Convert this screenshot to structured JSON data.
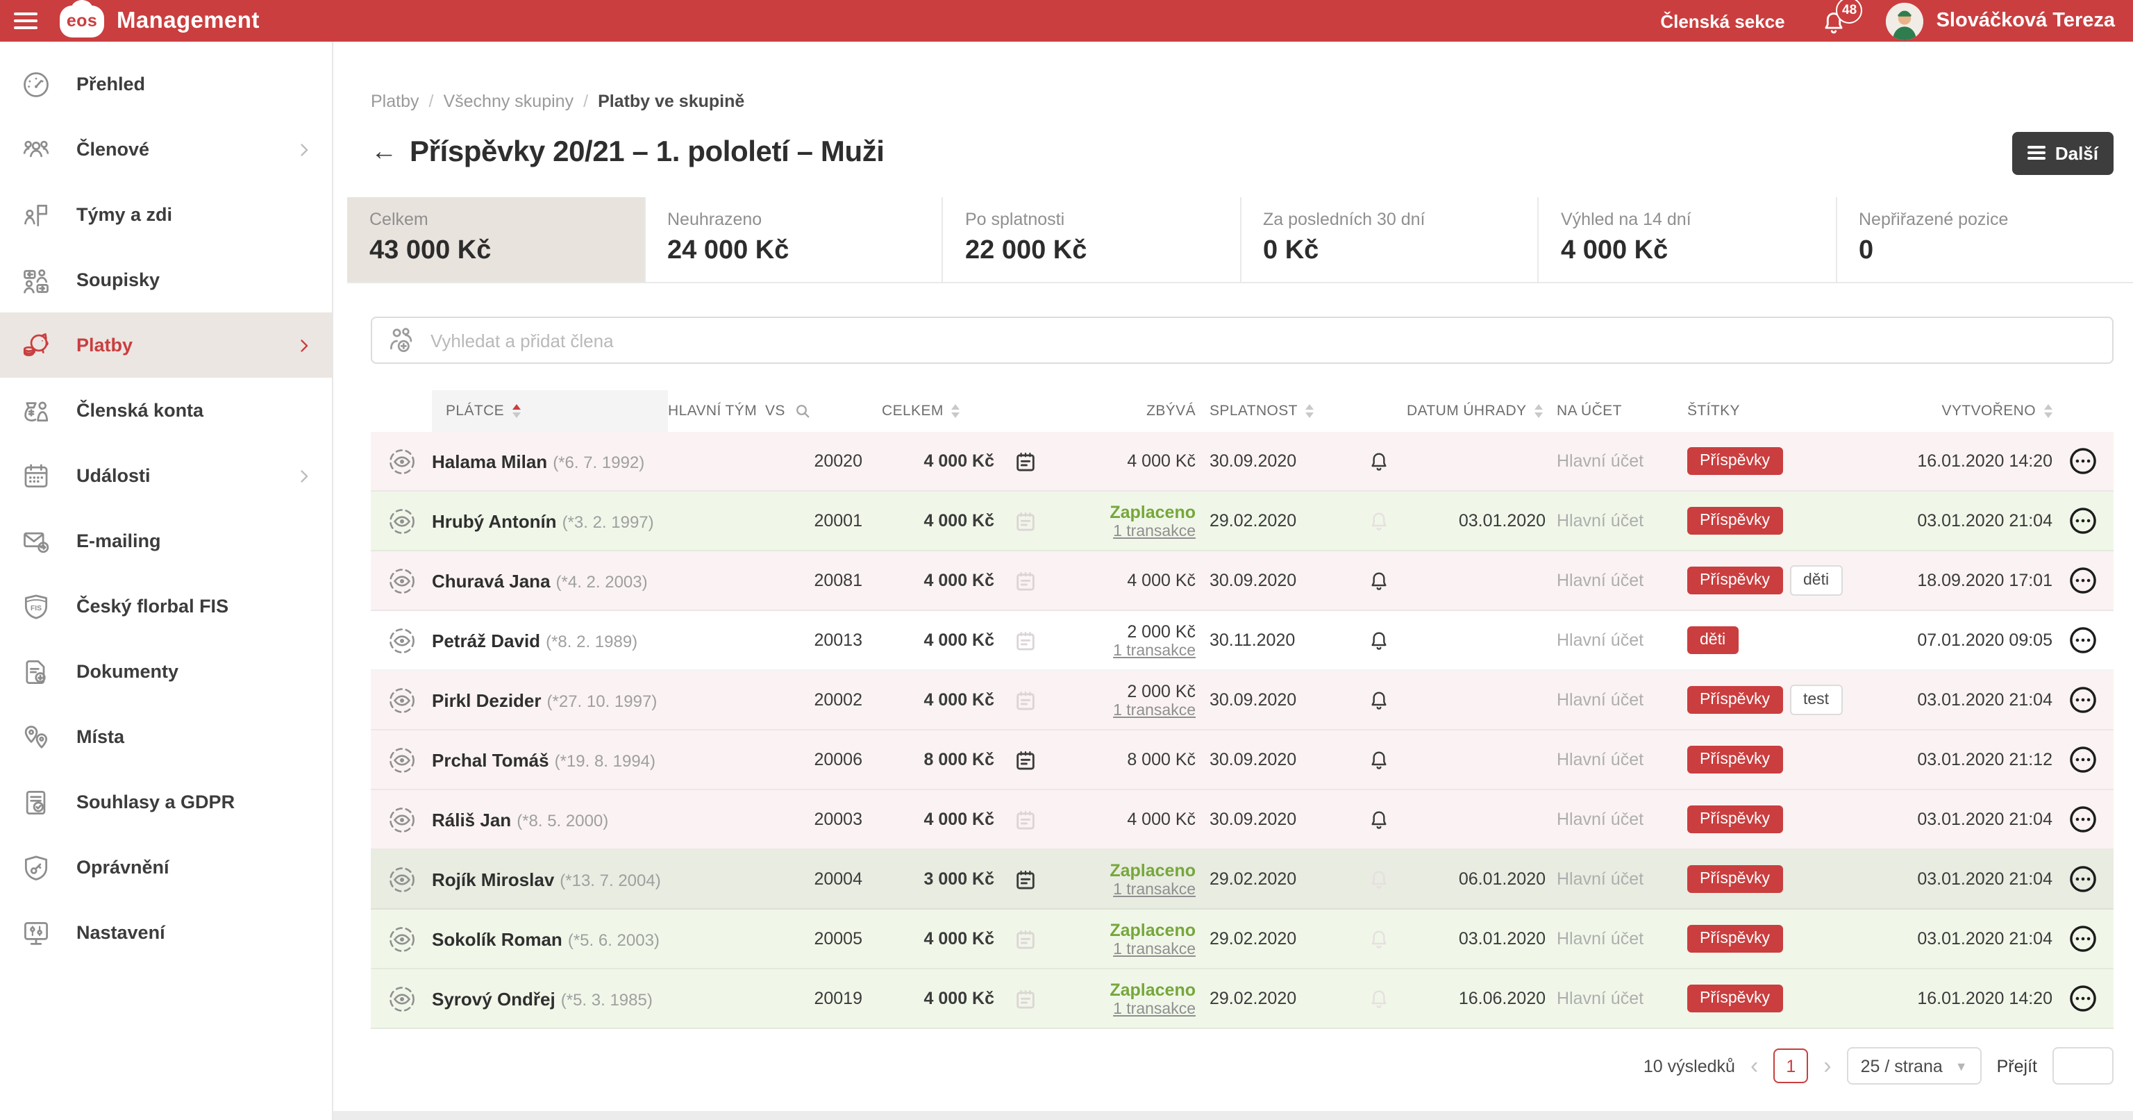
{
  "colors": {
    "brand_red": "#ca3e3f",
    "paid_green": "#76a73b",
    "row_overdue_bg": "#fbf3f3",
    "row_paid_bg": "#f0f7e9",
    "row_paid_highlight_bg": "#e8ece1",
    "selected_card_bg": "#e9e3de",
    "dark_button_bg": "#3d3d3d",
    "tag_red_bg": "#ca3e3f"
  },
  "header": {
    "brand": "eos",
    "app_title": "Management",
    "member_section": "Členská sekce",
    "notification_count": "48",
    "user_name": "Slováčková Tereza"
  },
  "sidebar": {
    "items": [
      {
        "label": "Přehled",
        "icon": "dashboard",
        "chevron": false,
        "active": false
      },
      {
        "label": "Členové",
        "icon": "members",
        "chevron": true,
        "active": false
      },
      {
        "label": "Týmy a zdi",
        "icon": "teams",
        "chevron": false,
        "active": false
      },
      {
        "label": "Soupisky",
        "icon": "rosters",
        "chevron": false,
        "active": false
      },
      {
        "label": "Platby",
        "icon": "payments",
        "chevron": true,
        "active": true
      },
      {
        "label": "Členská konta",
        "icon": "accounts",
        "chevron": false,
        "active": false
      },
      {
        "label": "Události",
        "icon": "events",
        "chevron": true,
        "active": false
      },
      {
        "label": "E-mailing",
        "icon": "emailing",
        "chevron": false,
        "active": false
      },
      {
        "label": "Český florbal FIS",
        "icon": "fis",
        "chevron": false,
        "active": false
      },
      {
        "label": "Dokumenty",
        "icon": "documents",
        "chevron": false,
        "active": false
      },
      {
        "label": "Místa",
        "icon": "places",
        "chevron": false,
        "active": false
      },
      {
        "label": "Souhlasy a GDPR",
        "icon": "gdpr",
        "chevron": false,
        "active": false
      },
      {
        "label": "Oprávnění",
        "icon": "permissions",
        "chevron": false,
        "active": false
      },
      {
        "label": "Nastavení",
        "icon": "settings",
        "chevron": false,
        "active": false
      }
    ]
  },
  "breadcrumb": [
    "Platby",
    "Všechny skupiny",
    "Platby ve skupině"
  ],
  "page": {
    "title": "Příspěvky 20/21 – 1. pololetí – Muži",
    "more_button": "Další"
  },
  "stats": [
    {
      "label": "Celkem",
      "value": "43 000 Kč",
      "selected": true
    },
    {
      "label": "Neuhrazeno",
      "value": "24 000 Kč",
      "selected": false
    },
    {
      "label": "Po splatnosti",
      "value": "22 000 Kč",
      "selected": false
    },
    {
      "label": "Za posledních 30 dní",
      "value": "0 Kč",
      "selected": false
    },
    {
      "label": "Výhled na 14 dní",
      "value": "4 000 Kč",
      "selected": false
    },
    {
      "label": "Nepřiřazené pozice",
      "value": "0",
      "selected": false
    }
  ],
  "search": {
    "placeholder": "Vyhledat a přidat člena"
  },
  "table": {
    "columns": [
      {
        "label": "PLÁTCE"
      },
      {
        "label": "HLAVNÍ TÝM"
      },
      {
        "label": "VS"
      },
      {
        "label": "CELKEM"
      },
      {
        "label": "ZBÝVÁ"
      },
      {
        "label": "SPLATNOST"
      },
      {
        "label": "DATUM ÚHRADY"
      },
      {
        "label": "NA ÚČET"
      },
      {
        "label": "ŠTÍTKY"
      },
      {
        "label": "VYTVOŘENO"
      }
    ],
    "rows": [
      {
        "name": "Halama Milan",
        "birth": "(*6. 7. 1992)",
        "team": "",
        "vs": "20020",
        "total": "4 000 Kč",
        "note_filled": true,
        "paid": false,
        "remaining": "4 000 Kč",
        "transactions": "",
        "due": "30.09.2020",
        "reminder_active": true,
        "paid_date": "",
        "account": "Hlavní účet",
        "tags": [
          {
            "label": "Příspěvky",
            "style": "red"
          }
        ],
        "created": "16.01.2020 14:20",
        "status": "overdue",
        "emphasis": false
      },
      {
        "name": "Hrubý Antonín",
        "birth": "(*3. 2. 1997)",
        "team": "",
        "vs": "20001",
        "total": "4 000 Kč",
        "note_filled": false,
        "paid": true,
        "remaining": "Zaplaceno",
        "transactions": "1 transakce",
        "due": "29.02.2020",
        "reminder_active": false,
        "paid_date": "03.01.2020",
        "account": "Hlavní účet",
        "tags": [
          {
            "label": "Příspěvky",
            "style": "red"
          }
        ],
        "created": "03.01.2020 21:04",
        "status": "paid",
        "emphasis": false
      },
      {
        "name": "Churavá Jana",
        "birth": "(*4. 2. 2003)",
        "team": "",
        "vs": "20081",
        "total": "4 000 Kč",
        "note_filled": false,
        "paid": false,
        "remaining": "4 000 Kč",
        "transactions": "",
        "due": "30.09.2020",
        "reminder_active": true,
        "paid_date": "",
        "account": "Hlavní účet",
        "tags": [
          {
            "label": "Příspěvky",
            "style": "red"
          },
          {
            "label": "děti",
            "style": "outline"
          }
        ],
        "created": "18.09.2020 17:01",
        "status": "overdue",
        "emphasis": false
      },
      {
        "name": "Petráž David",
        "birth": "(*8. 2. 1989)",
        "team": "",
        "vs": "20013",
        "total": "4 000 Kč",
        "note_filled": false,
        "paid": false,
        "remaining": "2 000 Kč",
        "transactions": "1 transakce",
        "due": "30.11.2020",
        "reminder_active": true,
        "paid_date": "",
        "account": "Hlavní účet",
        "tags": [
          {
            "label": "děti",
            "style": "red"
          }
        ],
        "created": "07.01.2020 09:05",
        "status": "upcoming",
        "emphasis": false
      },
      {
        "name": "Pirkl Dezider",
        "birth": "(*27. 10. 1997)",
        "team": "",
        "vs": "20002",
        "total": "4 000 Kč",
        "note_filled": false,
        "paid": false,
        "remaining": "2 000 Kč",
        "transactions": "1 transakce",
        "due": "30.09.2020",
        "reminder_active": true,
        "paid_date": "",
        "account": "Hlavní účet",
        "tags": [
          {
            "label": "Příspěvky",
            "style": "red"
          },
          {
            "label": "test",
            "style": "outline"
          }
        ],
        "created": "03.01.2020 21:04",
        "status": "overdue",
        "emphasis": false
      },
      {
        "name": "Prchal Tomáš",
        "birth": "(*19. 8. 1994)",
        "team": "",
        "vs": "20006",
        "total": "8 000 Kč",
        "note_filled": true,
        "paid": false,
        "remaining": "8 000 Kč",
        "transactions": "",
        "due": "30.09.2020",
        "reminder_active": true,
        "paid_date": "",
        "account": "Hlavní účet",
        "tags": [
          {
            "label": "Příspěvky",
            "style": "red"
          }
        ],
        "created": "03.01.2020 21:12",
        "status": "overdue",
        "emphasis": false
      },
      {
        "name": "Ráliš Jan",
        "birth": "(*8. 5. 2000)",
        "team": "",
        "vs": "20003",
        "total": "4 000 Kč",
        "note_filled": false,
        "paid": false,
        "remaining": "4 000 Kč",
        "transactions": "",
        "due": "30.09.2020",
        "reminder_active": true,
        "paid_date": "",
        "account": "Hlavní účet",
        "tags": [
          {
            "label": "Příspěvky",
            "style": "red"
          }
        ],
        "created": "03.01.2020 21:04",
        "status": "overdue",
        "emphasis": false
      },
      {
        "name": "Rojík Miroslav",
        "birth": "(*13. 7. 2004)",
        "team": "",
        "vs": "20004",
        "total": "3 000 Kč",
        "note_filled": true,
        "paid": true,
        "remaining": "Zaplaceno",
        "transactions": "1 transakce",
        "due": "29.02.2020",
        "reminder_active": false,
        "paid_date": "06.01.2020",
        "account": "Hlavní účet",
        "tags": [
          {
            "label": "Příspěvky",
            "style": "red"
          }
        ],
        "created": "03.01.2020 21:04",
        "status": "paid",
        "emphasis": true
      },
      {
        "name": "Sokolík Roman",
        "birth": "(*5. 6. 2003)",
        "team": "",
        "vs": "20005",
        "total": "4 000 Kč",
        "note_filled": false,
        "paid": true,
        "remaining": "Zaplaceno",
        "transactions": "1 transakce",
        "due": "29.02.2020",
        "reminder_active": false,
        "paid_date": "03.01.2020",
        "account": "Hlavní účet",
        "tags": [
          {
            "label": "Příspěvky",
            "style": "red"
          }
        ],
        "created": "03.01.2020 21:04",
        "status": "paid",
        "emphasis": false
      },
      {
        "name": "Syrový Ondřej",
        "birth": "(*5. 3. 1985)",
        "team": "",
        "vs": "20019",
        "total": "4 000 Kč",
        "note_filled": false,
        "paid": true,
        "remaining": "Zaplaceno",
        "transactions": "1 transakce",
        "due": "29.02.2020",
        "reminder_active": false,
        "paid_date": "16.06.2020",
        "account": "Hlavní účet",
        "tags": [
          {
            "label": "Příspěvky",
            "style": "red"
          }
        ],
        "created": "16.01.2020 14:20",
        "status": "paid",
        "emphasis": false
      }
    ]
  },
  "pagination": {
    "results": "10 výsledků",
    "current_page": "1",
    "page_size": "25 / strana",
    "goto_label": "Přejít"
  }
}
